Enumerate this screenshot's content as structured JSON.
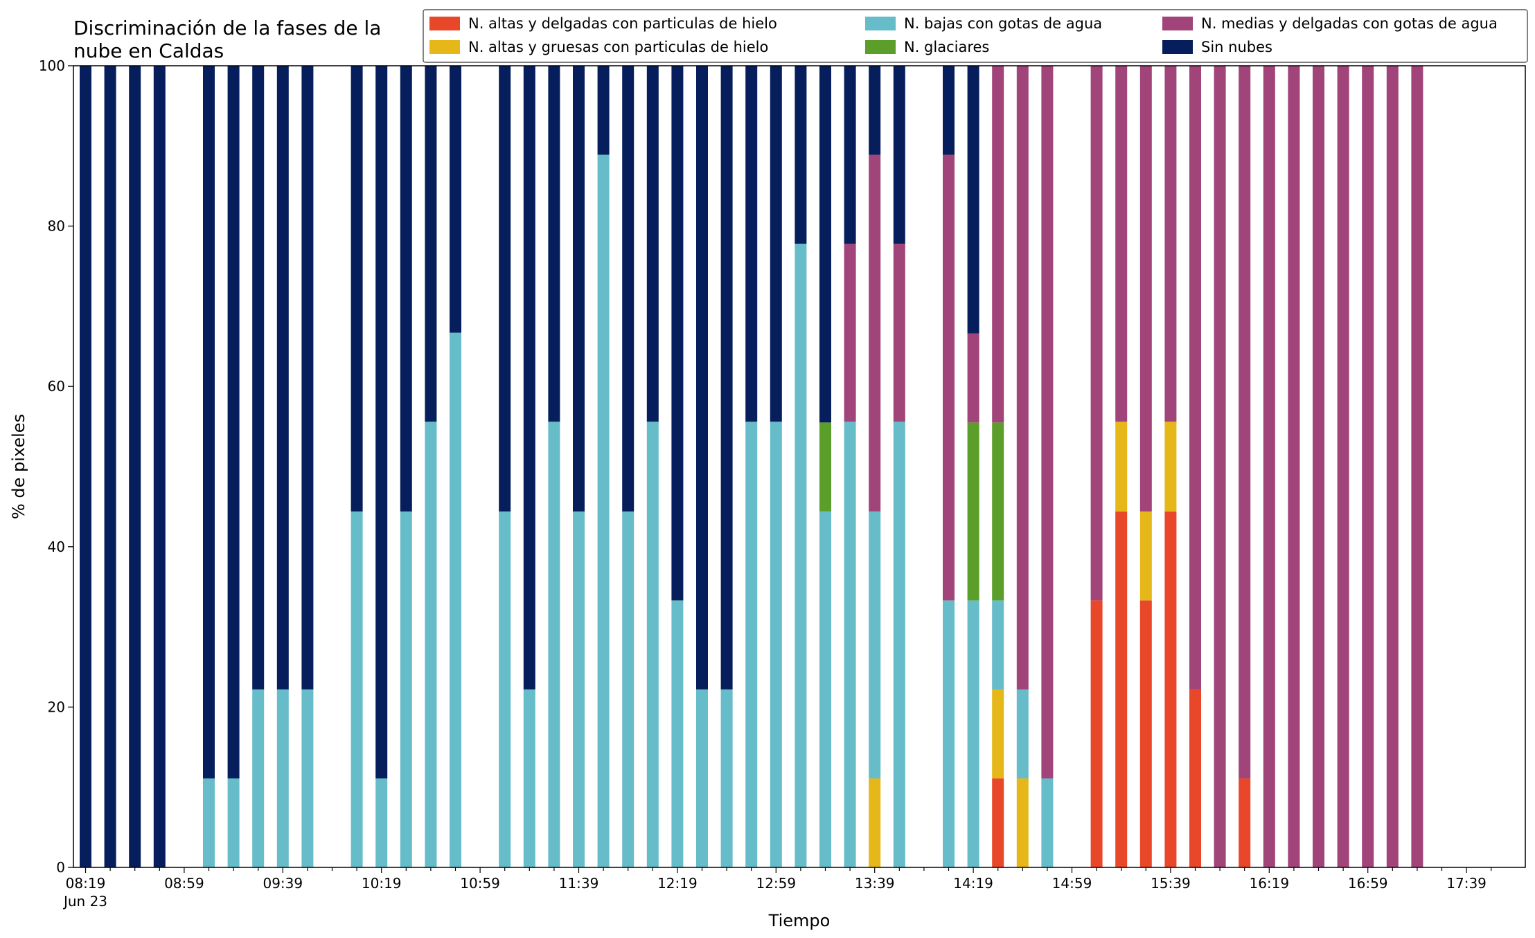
{
  "chart_data": {
    "type": "bar",
    "stacked": true,
    "title_lines": [
      "Discriminación de la fases de la",
      "nube en Caldas"
    ],
    "xlabel": "Tiempo",
    "ylabel": "% de pixeles",
    "ylim": [
      0,
      100
    ],
    "yticks": [
      0,
      20,
      40,
      60,
      80,
      100
    ],
    "xtick_labels": [
      "08:19",
      "08:59",
      "09:39",
      "10:19",
      "10:59",
      "11:39",
      "12:19",
      "12:59",
      "13:39",
      "14:19",
      "14:59",
      "15:39",
      "16:19",
      "16:59",
      "17:39"
    ],
    "xtick_sublabel": "Jun 23",
    "slot_start": "08:19",
    "slot_minutes": 10,
    "slot_count": 58,
    "legend_position": "top",
    "series": [
      {
        "key": "hielo_delgadas",
        "name": "N. altas y delgadas con particulas de hielo",
        "color": "#e8472a"
      },
      {
        "key": "hielo_gruesas",
        "name": "N. altas y gruesas con particulas de hielo",
        "color": "#e5b718"
      },
      {
        "key": "bajas_agua",
        "name": "N. bajas con gotas de agua",
        "color": "#67bcc9"
      },
      {
        "key": "glaciares",
        "name": "N. glaciares",
        "color": "#5b9e2a"
      },
      {
        "key": "medias_agua",
        "name": "N. medias y delgadas con gotas de agua",
        "color": "#a0447a"
      },
      {
        "key": "sin_nubes",
        "name": "Sin nubes",
        "color": "#061f5c"
      }
    ],
    "bars": [
      {
        "slot": 0,
        "values": [
          0,
          0,
          0,
          0,
          0,
          100
        ]
      },
      {
        "slot": 1,
        "values": [
          0,
          0,
          0,
          0,
          0,
          100
        ]
      },
      {
        "slot": 2,
        "values": [
          0,
          0,
          0,
          0,
          0,
          100
        ]
      },
      {
        "slot": 3,
        "values": [
          0,
          0,
          0,
          0,
          0,
          100
        ]
      },
      {
        "slot": 5,
        "values": [
          0,
          0,
          11.1,
          0,
          0,
          88.9
        ]
      },
      {
        "slot": 6,
        "values": [
          0,
          0,
          11.1,
          0,
          0,
          88.9
        ]
      },
      {
        "slot": 7,
        "values": [
          0,
          0,
          22.2,
          0,
          0,
          77.8
        ]
      },
      {
        "slot": 8,
        "values": [
          0,
          0,
          22.2,
          0,
          0,
          77.8
        ]
      },
      {
        "slot": 9,
        "values": [
          0,
          0,
          22.2,
          0,
          0,
          77.8
        ]
      },
      {
        "slot": 11,
        "values": [
          0,
          0,
          44.4,
          0,
          0,
          55.6
        ]
      },
      {
        "slot": 12,
        "values": [
          0,
          0,
          11.1,
          0,
          0,
          88.9
        ]
      },
      {
        "slot": 13,
        "values": [
          0,
          0,
          44.4,
          0,
          0,
          55.6
        ]
      },
      {
        "slot": 14,
        "values": [
          0,
          0,
          55.6,
          0,
          0,
          44.4
        ]
      },
      {
        "slot": 15,
        "values": [
          0,
          0,
          66.7,
          0,
          0,
          33.3
        ]
      },
      {
        "slot": 17,
        "values": [
          0,
          0,
          44.4,
          0,
          0,
          55.6
        ]
      },
      {
        "slot": 18,
        "values": [
          0,
          0,
          22.2,
          0,
          0,
          77.8
        ]
      },
      {
        "slot": 19,
        "values": [
          0,
          0,
          55.6,
          0,
          0,
          44.4
        ]
      },
      {
        "slot": 20,
        "values": [
          0,
          0,
          44.4,
          0,
          0,
          55.6
        ]
      },
      {
        "slot": 21,
        "values": [
          0,
          0,
          88.9,
          0,
          0,
          11.1
        ]
      },
      {
        "slot": 22,
        "values": [
          0,
          0,
          44.4,
          0,
          0,
          55.6
        ]
      },
      {
        "slot": 23,
        "values": [
          0,
          0,
          55.6,
          0,
          0,
          44.4
        ]
      },
      {
        "slot": 24,
        "values": [
          0,
          0,
          33.3,
          0,
          0,
          66.7
        ]
      },
      {
        "slot": 25,
        "values": [
          0,
          0,
          22.2,
          0,
          0,
          77.8
        ]
      },
      {
        "slot": 26,
        "values": [
          0,
          0,
          22.2,
          0,
          0,
          77.8
        ]
      },
      {
        "slot": 27,
        "values": [
          0,
          0,
          55.6,
          0,
          0,
          44.4
        ]
      },
      {
        "slot": 28,
        "values": [
          0,
          0,
          55.6,
          0,
          0,
          44.4
        ]
      },
      {
        "slot": 29,
        "values": [
          0,
          0,
          77.8,
          0,
          0,
          22.2
        ]
      },
      {
        "slot": 30,
        "values": [
          0,
          0,
          44.4,
          11.1,
          0,
          44.5
        ]
      },
      {
        "slot": 31,
        "values": [
          0,
          0,
          55.6,
          0,
          22.2,
          22.2
        ]
      },
      {
        "slot": 32,
        "values": [
          0,
          11.1,
          33.3,
          0,
          44.5,
          11.1
        ]
      },
      {
        "slot": 33,
        "values": [
          0,
          0,
          55.6,
          0,
          22.2,
          22.2
        ]
      },
      {
        "slot": 35,
        "values": [
          0,
          0,
          33.3,
          0,
          55.6,
          11.1
        ]
      },
      {
        "slot": 36,
        "values": [
          0,
          0,
          33.3,
          22.2,
          11.1,
          33.4
        ]
      },
      {
        "slot": 37,
        "values": [
          11.1,
          11.1,
          11.1,
          22.2,
          44.5,
          0
        ]
      },
      {
        "slot": 38,
        "values": [
          0,
          11.1,
          11.1,
          0,
          77.8,
          0
        ]
      },
      {
        "slot": 39,
        "values": [
          0,
          0,
          11.1,
          0,
          88.9,
          0
        ]
      },
      {
        "slot": 41,
        "values": [
          33.3,
          0,
          0,
          0,
          66.7,
          0
        ]
      },
      {
        "slot": 42,
        "values": [
          44.4,
          11.2,
          0,
          0,
          44.4,
          0
        ]
      },
      {
        "slot": 43,
        "values": [
          33.3,
          11.1,
          0,
          0,
          55.6,
          0
        ]
      },
      {
        "slot": 44,
        "values": [
          44.4,
          11.2,
          0,
          0,
          44.4,
          0
        ]
      },
      {
        "slot": 45,
        "values": [
          22.2,
          0,
          0,
          0,
          77.8,
          0
        ]
      },
      {
        "slot": 46,
        "values": [
          0,
          0,
          0,
          0,
          100,
          0
        ]
      },
      {
        "slot": 47,
        "values": [
          11.1,
          0,
          0,
          0,
          88.9,
          0
        ]
      },
      {
        "slot": 48,
        "values": [
          0,
          0,
          0,
          0,
          100,
          0
        ]
      },
      {
        "slot": 49,
        "values": [
          0,
          0,
          0,
          0,
          100,
          0
        ]
      },
      {
        "slot": 50,
        "values": [
          0,
          0,
          0,
          0,
          100,
          0
        ]
      },
      {
        "slot": 51,
        "values": [
          0,
          0,
          0,
          0,
          100,
          0
        ]
      },
      {
        "slot": 52,
        "values": [
          0,
          0,
          0,
          0,
          100,
          0
        ]
      },
      {
        "slot": 53,
        "values": [
          0,
          0,
          0,
          0,
          100,
          0
        ]
      },
      {
        "slot": 54,
        "values": [
          0,
          0,
          0,
          0,
          100,
          0
        ]
      }
    ]
  }
}
